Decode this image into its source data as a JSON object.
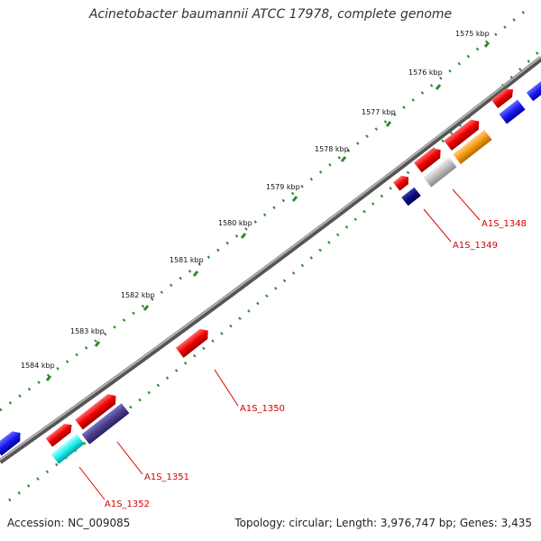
{
  "title": "Acinetobacter baumannii ATCC 17978, complete genome",
  "footer": {
    "accession": "Accession: NC_009085",
    "summary": "Topology: circular; Length: 3,976,747 bp; Genes: 3,435"
  },
  "ticks": [
    {
      "label": "1575 kbp"
    },
    {
      "label": "1576 kbp"
    },
    {
      "label": "1577 kbp"
    },
    {
      "label": "1578 kbp"
    },
    {
      "label": "1579 kbp"
    },
    {
      "label": "1580 kbp"
    },
    {
      "label": "1581 kbp"
    },
    {
      "label": "1582 kbp"
    },
    {
      "label": "1583 kbp"
    },
    {
      "label": "1584 kbp"
    }
  ],
  "gene_labels": [
    {
      "id": "A1S_1348"
    },
    {
      "id": "A1S_1349"
    },
    {
      "id": "A1S_1350"
    },
    {
      "id": "A1S_1351"
    },
    {
      "id": "A1S_1352"
    }
  ],
  "colors": {
    "backbone": "#7a7a7a",
    "forward_cds": "#ee0000",
    "reverse_blue": "#1a1aee",
    "navy": "#0a0a80",
    "slate": "#4a3f8f",
    "cyan": "#22eeee",
    "grey": "#bdbdbd",
    "orange": "#f59a10",
    "tick_outer": "#2a8a2a",
    "tick_inner": "#2a8a2a",
    "label_line": "#e00000"
  }
}
